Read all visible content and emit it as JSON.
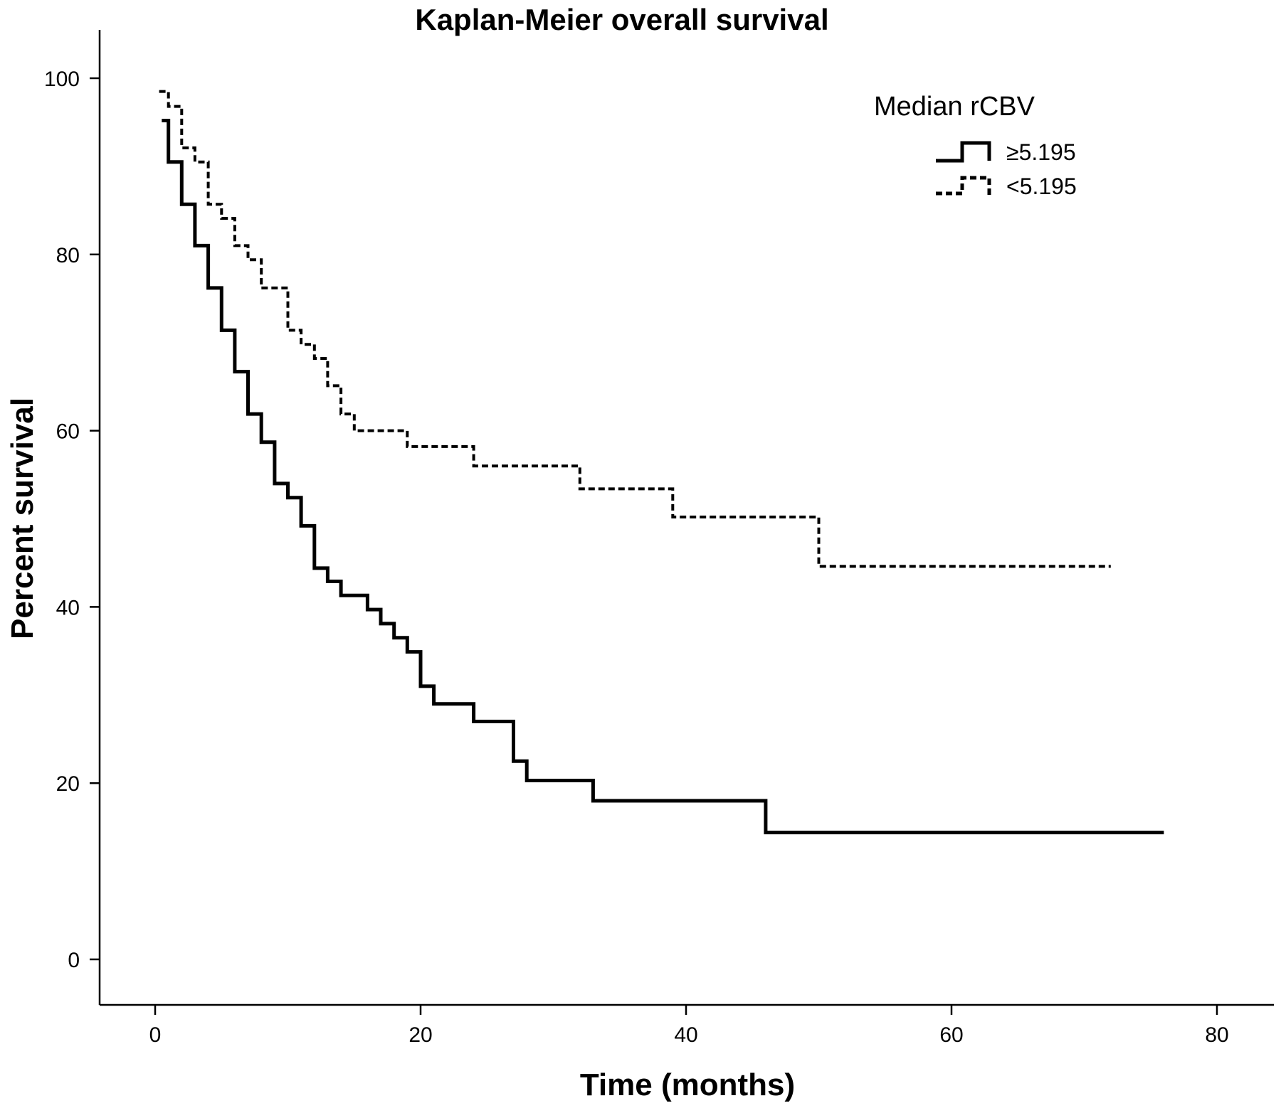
{
  "chart_data": {
    "type": "line",
    "title": "Kaplan-Meier overall survival",
    "xlabel": "Time (months)",
    "ylabel": "Percent survival",
    "xlim": [
      -5,
      82
    ],
    "ylim": [
      -7.5,
      106
    ],
    "x_ticks": [
      0,
      20,
      40,
      60,
      80
    ],
    "y_ticks": [
      0,
      20,
      40,
      60,
      80,
      100
    ],
    "x_tick_labels": [
      "0",
      "20",
      "40",
      "60",
      "80"
    ],
    "y_tick_labels": [
      "0",
      "20",
      "40",
      "60",
      "80",
      "100"
    ],
    "grid": false,
    "legend": {
      "title": "Median rCBV",
      "placement": "top-right"
    },
    "series": [
      {
        "name": "≥5.195",
        "style": "solid",
        "color": "#000000",
        "x": [
          0.5,
          1,
          2,
          3,
          4,
          5,
          6,
          7,
          8,
          9,
          10,
          11,
          12,
          13,
          14,
          16,
          17,
          18,
          19,
          20,
          21,
          24,
          27,
          28,
          33,
          46,
          76
        ],
        "y": [
          95.2,
          90.5,
          85.7,
          81.0,
          76.2,
          71.4,
          66.7,
          61.9,
          58.7,
          54.0,
          52.4,
          49.2,
          44.4,
          42.9,
          41.3,
          39.7,
          38.1,
          36.5,
          34.9,
          31.0,
          29.0,
          27.0,
          22.5,
          20.3,
          18.0,
          14.4,
          14.4
        ]
      },
      {
        "name": "<5.195",
        "style": "dashed",
        "color": "#000000",
        "x": [
          0.3,
          1,
          2,
          3,
          4,
          5,
          6,
          7,
          8,
          10,
          11,
          12,
          13,
          14,
          15,
          19,
          24,
          32,
          39,
          50,
          72
        ],
        "y": [
          98.5,
          96.8,
          92.1,
          90.5,
          85.7,
          84.1,
          81.0,
          79.4,
          76.2,
          71.4,
          69.8,
          68.2,
          65.1,
          61.9,
          60.0,
          58.2,
          56.0,
          53.4,
          50.2,
          44.6,
          44.6
        ]
      }
    ]
  }
}
